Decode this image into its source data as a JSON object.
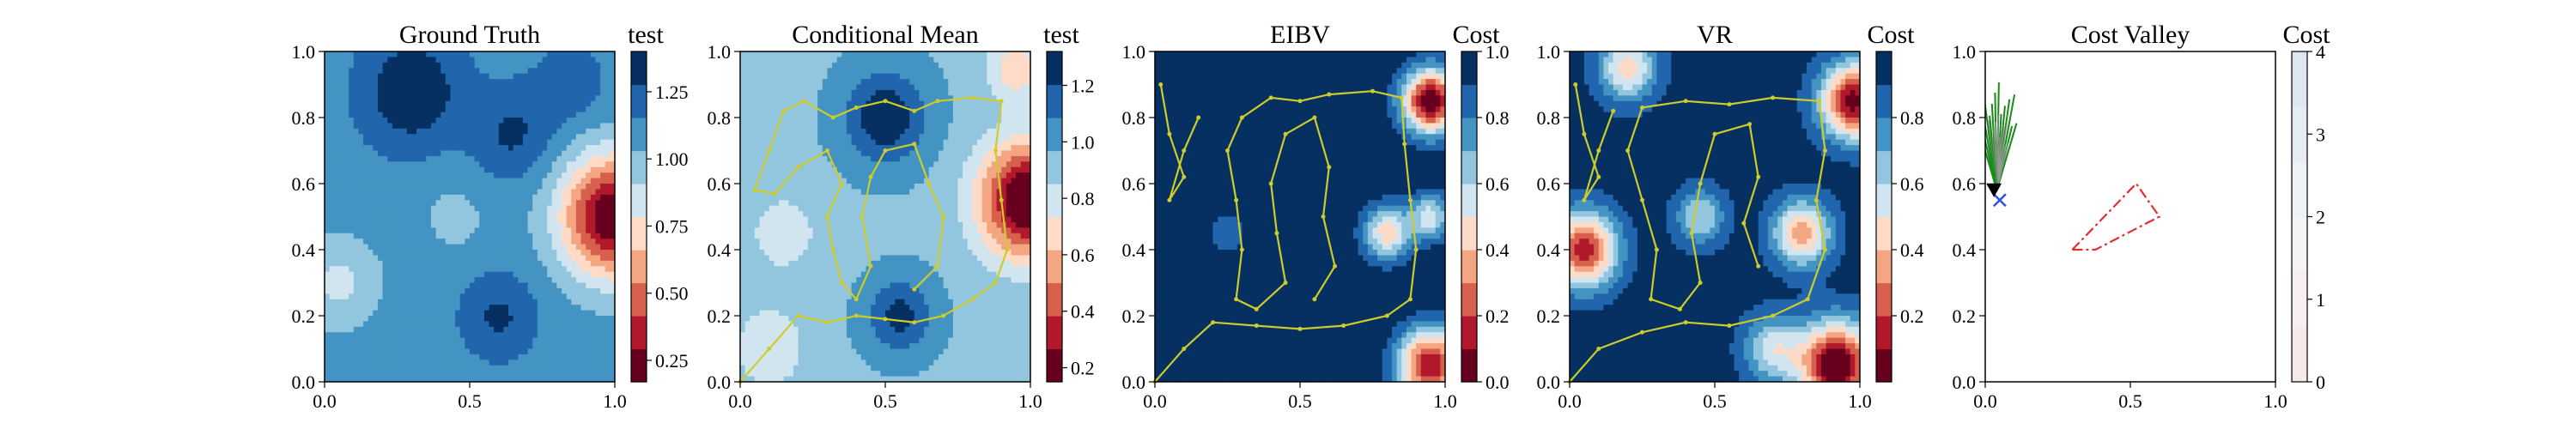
{
  "figure_title": "",
  "chart_data": [
    {
      "type": "heatmap",
      "title": "Ground Truth",
      "colorbar_label": "test",
      "xlim": [
        0,
        1
      ],
      "ylim": [
        0,
        1
      ],
      "xticks": [
        "0.0",
        "0.5",
        "1.0"
      ],
      "yticks": [
        "0.0",
        "0.2",
        "0.4",
        "0.6",
        "0.8",
        "1.0"
      ],
      "colorbar": {
        "range": [
          0.17,
          1.4
        ],
        "ticks": [
          "0.25",
          "0.50",
          "0.75",
          "1.00",
          "1.25"
        ],
        "tick_values": [
          0.25,
          0.5,
          0.75,
          1.0,
          1.25
        ],
        "colormap": "RdBu"
      },
      "field": {
        "base": 1.1,
        "blobs": [
          {
            "x": 1.0,
            "y": 0.5,
            "amp": -0.95,
            "s": 0.13
          },
          {
            "x": 0.3,
            "y": 0.88,
            "amp": 0.3,
            "s": 0.12
          },
          {
            "x": 0.65,
            "y": 0.75,
            "amp": 0.2,
            "s": 0.1
          },
          {
            "x": 0.6,
            "y": 0.2,
            "amp": 0.2,
            "s": 0.09
          },
          {
            "x": 0.05,
            "y": 0.3,
            "amp": -0.22,
            "s": 0.1
          },
          {
            "x": 0.45,
            "y": 0.5,
            "amp": -0.1,
            "s": 0.1
          },
          {
            "x": 0.85,
            "y": 0.9,
            "amp": 0.15,
            "s": 0.08
          }
        ]
      },
      "overlays": []
    },
    {
      "type": "heatmap",
      "title": "Conditional Mean",
      "colorbar_label": "test",
      "xlim": [
        0,
        1
      ],
      "ylim": [
        0,
        1
      ],
      "xticks": [
        "0.0",
        "0.5",
        "1.0"
      ],
      "yticks": [
        "0.0",
        "0.2",
        "0.4",
        "0.6",
        "0.8",
        "1.0"
      ],
      "colorbar": {
        "range": [
          0.15,
          1.32
        ],
        "ticks": [
          "0.2",
          "0.4",
          "0.6",
          "0.8",
          "1.0",
          "1.2"
        ],
        "tick_values": [
          0.2,
          0.4,
          0.6,
          0.8,
          1.0,
          1.2
        ],
        "colormap": "RdBu"
      },
      "field": {
        "base": 0.95,
        "blobs": [
          {
            "x": 1.0,
            "y": 0.55,
            "amp": -0.9,
            "s": 0.12
          },
          {
            "x": 0.5,
            "y": 0.8,
            "amp": 0.35,
            "s": 0.1
          },
          {
            "x": 0.55,
            "y": 0.2,
            "amp": 0.3,
            "s": 0.08
          },
          {
            "x": 0.15,
            "y": 0.45,
            "amp": -0.15,
            "s": 0.1
          },
          {
            "x": 0.95,
            "y": 0.95,
            "amp": -0.3,
            "s": 0.07
          },
          {
            "x": 0.1,
            "y": 0.1,
            "amp": -0.2,
            "s": 0.09
          }
        ]
      },
      "overlays": [
        {
          "type": "line",
          "color": "#cccc2a",
          "points": [
            [
              0.0,
              0.0
            ],
            [
              0.1,
              0.1
            ],
            [
              0.2,
              0.2
            ],
            [
              0.3,
              0.18
            ],
            [
              0.4,
              0.2
            ],
            [
              0.5,
              0.19
            ],
            [
              0.6,
              0.18
            ],
            [
              0.7,
              0.2
            ],
            [
              0.8,
              0.25
            ],
            [
              0.88,
              0.3
            ],
            [
              0.92,
              0.4
            ],
            [
              0.9,
              0.55
            ],
            [
              0.88,
              0.7
            ],
            [
              0.9,
              0.85
            ],
            [
              0.8,
              0.86
            ],
            [
              0.68,
              0.85
            ],
            [
              0.6,
              0.82
            ],
            [
              0.5,
              0.85
            ],
            [
              0.4,
              0.83
            ],
            [
              0.32,
              0.8
            ],
            [
              0.22,
              0.85
            ],
            [
              0.15,
              0.82
            ],
            [
              0.1,
              0.7
            ],
            [
              0.05,
              0.58
            ],
            [
              0.12,
              0.57
            ],
            [
              0.2,
              0.65
            ],
            [
              0.3,
              0.7
            ],
            [
              0.35,
              0.6
            ],
            [
              0.3,
              0.5
            ],
            [
              0.32,
              0.4
            ],
            [
              0.35,
              0.3
            ],
            [
              0.4,
              0.25
            ],
            [
              0.45,
              0.35
            ],
            [
              0.42,
              0.5
            ],
            [
              0.45,
              0.62
            ],
            [
              0.5,
              0.7
            ],
            [
              0.6,
              0.72
            ],
            [
              0.65,
              0.6
            ],
            [
              0.7,
              0.5
            ],
            [
              0.68,
              0.35
            ],
            [
              0.6,
              0.28
            ]
          ]
        }
      ]
    },
    {
      "type": "heatmap",
      "title": "EIBV",
      "colorbar_label": "Cost",
      "xlim": [
        0,
        1
      ],
      "ylim": [
        0,
        1
      ],
      "xticks": [
        "0.0",
        "0.5",
        "1.0"
      ],
      "yticks": [
        "0.0",
        "0.2",
        "0.4",
        "0.6",
        "0.8",
        "1.0"
      ],
      "colorbar": {
        "range": [
          0,
          1
        ],
        "ticks": [
          "0.0",
          "0.2",
          "0.4",
          "0.6",
          "0.8",
          "1.0"
        ],
        "tick_values": [
          0.0,
          0.2,
          0.4,
          0.6,
          0.8,
          1.0
        ],
        "colormap": "RdBu_r_inverse"
      },
      "field": {
        "base": 1.0,
        "blobs": [
          {
            "x": 0.95,
            "y": 0.85,
            "amp": -1.0,
            "s": 0.07
          },
          {
            "x": 0.95,
            "y": 0.05,
            "amp": -0.9,
            "s": 0.08
          },
          {
            "x": 0.8,
            "y": 0.45,
            "amp": -0.55,
            "s": 0.06
          },
          {
            "x": 0.25,
            "y": 0.45,
            "amp": -0.15,
            "s": 0.06
          },
          {
            "x": 0.95,
            "y": 0.5,
            "amp": -0.45,
            "s": 0.05
          }
        ]
      },
      "overlays": [
        {
          "type": "line",
          "color": "#cccc2a",
          "points": [
            [
              0.0,
              0.0
            ],
            [
              0.1,
              0.1
            ],
            [
              0.2,
              0.18
            ],
            [
              0.35,
              0.17
            ],
            [
              0.5,
              0.16
            ],
            [
              0.65,
              0.17
            ],
            [
              0.8,
              0.2
            ],
            [
              0.88,
              0.25
            ],
            [
              0.9,
              0.4
            ],
            [
              0.88,
              0.55
            ],
            [
              0.86,
              0.72
            ],
            [
              0.85,
              0.86
            ],
            [
              0.75,
              0.88
            ],
            [
              0.6,
              0.87
            ],
            [
              0.5,
              0.85
            ],
            [
              0.4,
              0.86
            ],
            [
              0.3,
              0.8
            ],
            [
              0.25,
              0.7
            ],
            [
              0.28,
              0.55
            ],
            [
              0.3,
              0.4
            ],
            [
              0.28,
              0.25
            ],
            [
              0.35,
              0.22
            ],
            [
              0.45,
              0.3
            ],
            [
              0.42,
              0.45
            ],
            [
              0.4,
              0.6
            ],
            [
              0.45,
              0.75
            ],
            [
              0.55,
              0.8
            ],
            [
              0.6,
              0.65
            ],
            [
              0.58,
              0.5
            ],
            [
              0.62,
              0.35
            ],
            [
              0.55,
              0.25
            ]
          ]
        },
        {
          "type": "line",
          "color": "#cccc2a",
          "points": [
            [
              0.02,
              0.9
            ],
            [
              0.05,
              0.75
            ],
            [
              0.1,
              0.62
            ],
            [
              0.05,
              0.55
            ],
            [
              0.1,
              0.7
            ],
            [
              0.15,
              0.8
            ]
          ]
        }
      ]
    },
    {
      "type": "heatmap",
      "title": "VR",
      "colorbar_label": "Cost",
      "xlim": [
        0,
        1
      ],
      "ylim": [
        0,
        1
      ],
      "xticks": [
        "0.0",
        "0.5",
        "1.0"
      ],
      "yticks": [
        "0.0",
        "0.2",
        "0.4",
        "0.6",
        "0.8",
        "1.0"
      ],
      "colorbar": {
        "range": [
          0,
          1
        ],
        "ticks": [
          "0.2",
          "0.4",
          "0.6",
          "0.8"
        ],
        "tick_values": [
          0.2,
          0.4,
          0.6,
          0.8
        ],
        "colormap": "RdBu_r_inverse"
      },
      "field": {
        "base": 0.95,
        "blobs": [
          {
            "x": 0.92,
            "y": 0.05,
            "amp": -1.0,
            "s": 0.09
          },
          {
            "x": 0.98,
            "y": 0.85,
            "amp": -0.9,
            "s": 0.08
          },
          {
            "x": 0.05,
            "y": 0.4,
            "amp": -0.8,
            "s": 0.08
          },
          {
            "x": 0.2,
            "y": 0.95,
            "amp": -0.5,
            "s": 0.07
          },
          {
            "x": 0.8,
            "y": 0.45,
            "amp": -0.6,
            "s": 0.07
          },
          {
            "x": 0.45,
            "y": 0.5,
            "amp": -0.35,
            "s": 0.06
          },
          {
            "x": 0.7,
            "y": 0.1,
            "amp": -0.4,
            "s": 0.07
          }
        ]
      },
      "overlays": [
        {
          "type": "line",
          "color": "#cccc2a",
          "points": [
            [
              0.0,
              0.0
            ],
            [
              0.1,
              0.1
            ],
            [
              0.25,
              0.15
            ],
            [
              0.4,
              0.18
            ],
            [
              0.55,
              0.17
            ],
            [
              0.7,
              0.2
            ],
            [
              0.82,
              0.25
            ],
            [
              0.88,
              0.4
            ],
            [
              0.85,
              0.55
            ],
            [
              0.88,
              0.7
            ],
            [
              0.86,
              0.85
            ],
            [
              0.7,
              0.86
            ],
            [
              0.55,
              0.84
            ],
            [
              0.4,
              0.85
            ],
            [
              0.25,
              0.83
            ],
            [
              0.2,
              0.7
            ],
            [
              0.25,
              0.55
            ],
            [
              0.3,
              0.4
            ],
            [
              0.28,
              0.25
            ],
            [
              0.38,
              0.22
            ],
            [
              0.45,
              0.3
            ],
            [
              0.42,
              0.45
            ],
            [
              0.45,
              0.6
            ],
            [
              0.5,
              0.75
            ],
            [
              0.62,
              0.78
            ],
            [
              0.65,
              0.62
            ],
            [
              0.6,
              0.48
            ],
            [
              0.65,
              0.35
            ]
          ]
        },
        {
          "type": "line",
          "color": "#cccc2a",
          "points": [
            [
              0.02,
              0.9
            ],
            [
              0.05,
              0.75
            ],
            [
              0.1,
              0.62
            ],
            [
              0.05,
              0.55
            ],
            [
              0.1,
              0.7
            ],
            [
              0.15,
              0.82
            ]
          ]
        }
      ]
    },
    {
      "type": "heatmap",
      "title": "Cost Valley",
      "colorbar_label": "Cost",
      "xlim": [
        0,
        1
      ],
      "ylim": [
        0,
        1
      ],
      "xticks": [
        "0.0",
        "0.5",
        "1.0"
      ],
      "yticks": [
        "0.0",
        "0.2",
        "0.4",
        "0.6",
        "0.8",
        "1.0"
      ],
      "colorbar": {
        "range": [
          0,
          4
        ],
        "ticks": [
          "0",
          "1",
          "2",
          "3",
          "4"
        ],
        "tick_values": [
          0,
          1,
          2,
          3,
          4
        ],
        "colormap": "pale_RdBu"
      },
      "field": {
        "base": 0.0,
        "blobs": []
      },
      "overlays": [
        {
          "type": "polygon",
          "color": "#e03030",
          "dashed": true,
          "points": [
            [
              0.3,
              0.4
            ],
            [
              0.38,
              0.4
            ],
            [
              0.6,
              0.5
            ],
            [
              0.52,
              0.6
            ],
            [
              0.3,
              0.4
            ]
          ]
        },
        {
          "type": "fan",
          "color": "#1a8a1a",
          "origin": [
            0.04,
            0.58
          ],
          "count": 14
        },
        {
          "type": "marker",
          "shape": "x",
          "color": "#3050e0",
          "x": 0.05,
          "y": 0.55
        },
        {
          "type": "marker",
          "shape": "triangle",
          "color": "#000000",
          "x": 0.03,
          "y": 0.58
        }
      ]
    }
  ]
}
